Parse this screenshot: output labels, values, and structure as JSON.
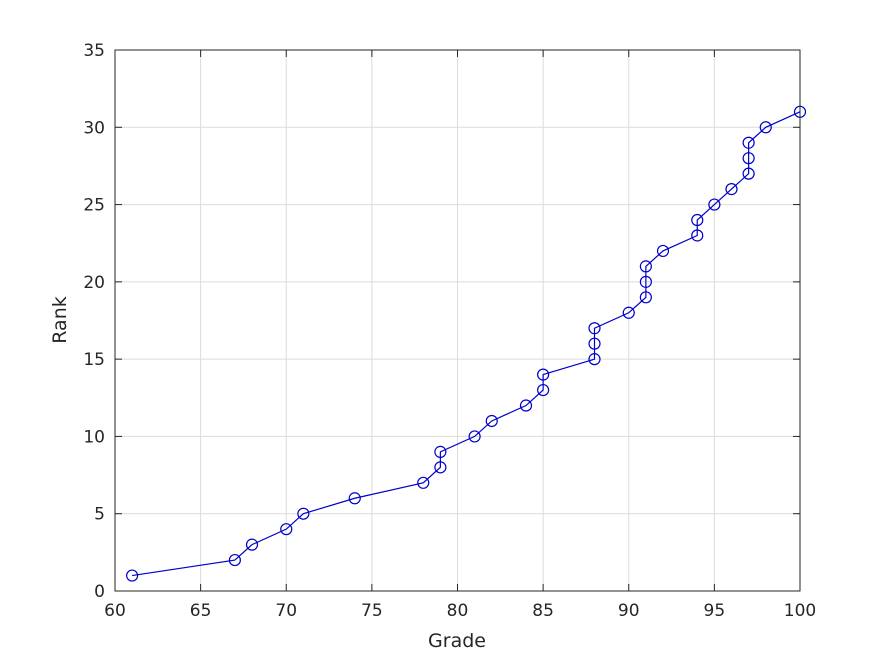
{
  "chart_data": {
    "type": "line",
    "xlabel": "Grade",
    "ylabel": "Rank",
    "xlim": [
      60,
      100
    ],
    "ylim": [
      0,
      35
    ],
    "xticks": [
      60,
      65,
      70,
      75,
      80,
      85,
      90,
      95,
      100
    ],
    "yticks": [
      0,
      5,
      10,
      15,
      20,
      25,
      30,
      35
    ],
    "grid": true,
    "marker": "circle-open",
    "line_color": "#0000cc",
    "series": [
      {
        "x": [
          61,
          67,
          68,
          70,
          71,
          74,
          78,
          79,
          79,
          81,
          82,
          84,
          85,
          85,
          88,
          88,
          88,
          90,
          91,
          91,
          91,
          92,
          94,
          94,
          95,
          96,
          97,
          97,
          97,
          98,
          100
        ],
        "y": [
          1,
          2,
          3,
          4,
          5,
          6,
          7,
          8,
          9,
          10,
          11,
          12,
          13,
          14,
          15,
          16,
          17,
          18,
          19,
          20,
          21,
          22,
          23,
          24,
          25,
          26,
          27,
          28,
          29,
          30,
          31
        ]
      }
    ]
  }
}
